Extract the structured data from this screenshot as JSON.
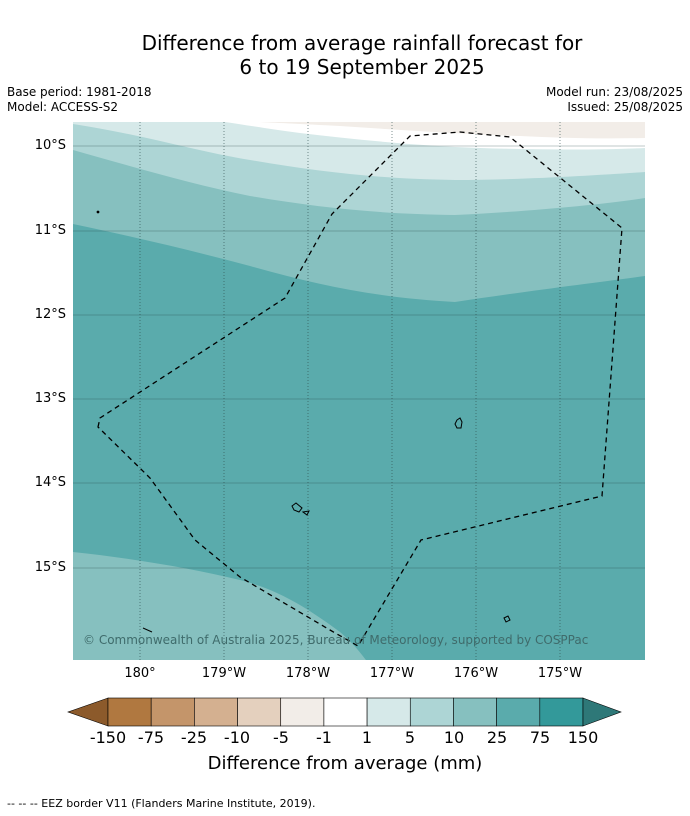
{
  "title_line1": "Difference from average rainfall forecast for",
  "title_line2": "6 to 19 September 2025",
  "base_period": "Base period: 1981-2018",
  "model": "Model: ACCESS-S2",
  "model_run": "Model run: 23/08/2025",
  "issued": "Issued: 25/08/2025",
  "copyright": "© Commonwealth of Australia 2025, Bureau of Meteorology, supported by COSPPac",
  "lat_labels": [
    "10°S",
    "11°S",
    "12°S",
    "13°S",
    "14°S",
    "15°S"
  ],
  "lon_labels": [
    "180°",
    "179°W",
    "178°W",
    "177°W",
    "176°W",
    "175°W"
  ],
  "legend": {
    "title": "Difference from average (mm)",
    "ticks": [
      "-150",
      "-75",
      "-25",
      "-10",
      "-5",
      "-1",
      "1",
      "5",
      "10",
      "25",
      "75",
      "150"
    ],
    "colors": [
      "#8c5a2b",
      "#b07840",
      "#c4956a",
      "#d4b090",
      "#e4d0be",
      "#f2ede8",
      "#ffffff",
      "#d6e9e9",
      "#add5d5",
      "#86c0bf",
      "#5aabac",
      "#33999a",
      "#2e7878"
    ]
  },
  "footer": "--  --  -- EEZ border V11 (Flanders Marine Institute, 2019)."
}
